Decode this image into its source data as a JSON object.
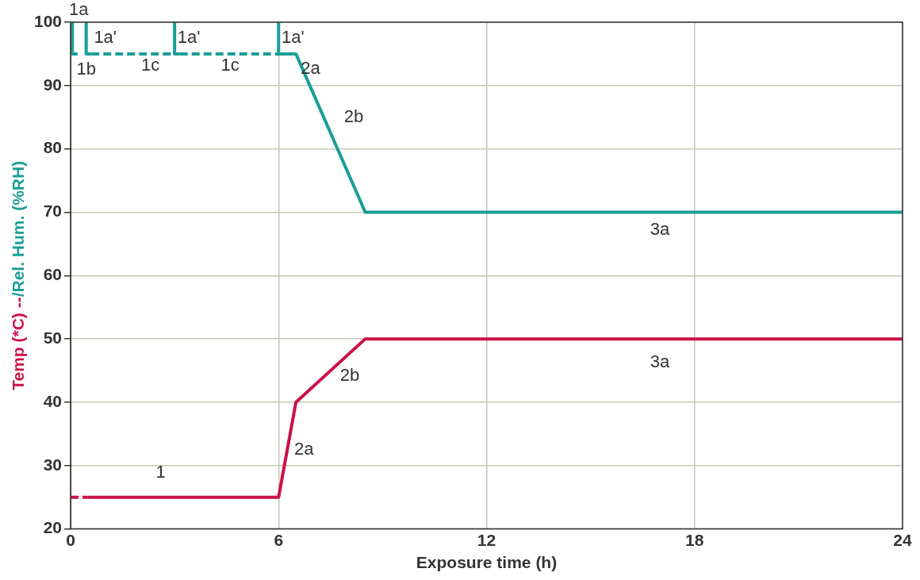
{
  "chart_data": {
    "type": "line",
    "xlabel": "Exposure time (h)",
    "ylabel": "Temp (*C) --/Rel. Hum. (%RH)",
    "xlim": [
      0,
      24
    ],
    "xticks": [
      0,
      6,
      12,
      18,
      24
    ],
    "ylim": [
      20,
      100
    ],
    "yticks": [
      20,
      30,
      40,
      50,
      60,
      70,
      80,
      90,
      100
    ],
    "grid": true,
    "legend": false,
    "marker": "none",
    "series": [
      {
        "color": "#cc1146",
        "line_style": "dashed",
        "x": [
          0,
          0.5
        ],
        "values": [
          25,
          25
        ]
      },
      {
        "color": "#cc1146",
        "line_style": "solid",
        "x": [
          0.5,
          6,
          6.5,
          8.5,
          24
        ],
        "values": [
          25,
          25,
          40,
          50,
          50
        ]
      },
      {
        "color": "#1a9e96",
        "line_style": "dashed",
        "x": [
          0.6,
          1.8,
          3
        ],
        "values": [
          95,
          95,
          95
        ]
      },
      {
        "color": "#1a9e96",
        "line_style": "dashed",
        "x": [
          3.15,
          4.6,
          6
        ],
        "values": [
          95,
          95,
          95
        ]
      },
      {
        "color": "#1a9e96",
        "line_style": "solid",
        "x": [
          0.05,
          0.05,
          0.2,
          0.25,
          0.45,
          0.45,
          0.6,
          2.9,
          3,
          3,
          3.15,
          5.9,
          6,
          6,
          6.5,
          8.5,
          24
        ],
        "values": [
          100,
          95,
          95,
          null,
          100,
          95,
          95,
          null,
          100,
          95,
          95,
          null,
          100,
          95,
          95,
          70,
          70
        ]
      }
    ],
    "annotations": [
      {
        "text": "1a",
        "x": 0.05,
        "y": 100
      },
      {
        "text": "1a'",
        "x": 0.45,
        "y": 97.5
      },
      {
        "text": "1a'",
        "x": 3,
        "y": 97.5
      },
      {
        "text": "1a'",
        "x": 6,
        "y": 97.5
      },
      {
        "text": "1b",
        "x": 0.45,
        "y": 95
      },
      {
        "text": "1c",
        "x": 2.3,
        "y": 95
      },
      {
        "text": "1c",
        "x": 4.6,
        "y": 95
      },
      {
        "text": "2a",
        "x": 6.3,
        "y": 95
      },
      {
        "text": "2b",
        "x": 7.3,
        "y": 85
      },
      {
        "text": "3a",
        "x": 17,
        "y": 70
      },
      {
        "text": "3a",
        "x": 17,
        "y": 50
      },
      {
        "text": "2b",
        "x": 8.1,
        "y": 48
      },
      {
        "text": "2a",
        "x": 6.25,
        "y": 32.5
      },
      {
        "text": "1",
        "x": 2.6,
        "y": 25
      }
    ]
  }
}
